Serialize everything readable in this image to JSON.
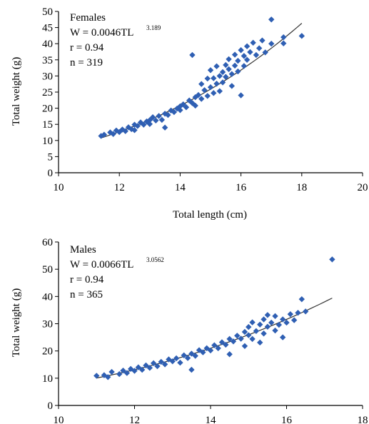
{
  "chart_data": [
    {
      "type": "scatter",
      "title": "",
      "xlabel": "Total length (cm)",
      "ylabel": "Total weight (g)",
      "xlim": [
        10,
        20
      ],
      "ylim": [
        0,
        50
      ],
      "xticks": [
        "10",
        "12",
        "14",
        "16",
        "18",
        "20"
      ],
      "yticks": [
        "0",
        "5",
        "10",
        "15",
        "20",
        "25",
        "30",
        "35",
        "40",
        "45",
        "50"
      ],
      "marker_color": "#2f5fb3",
      "fit_color": "#333333",
      "annotation": {
        "group": "Females",
        "equation_base": "W = 0.0046TL",
        "equation_exp": "3.189",
        "r": "r = 0.94",
        "n": "n = 319"
      },
      "fit": {
        "a": 0.0046,
        "b": 3.189,
        "x_range": [
          11.4,
          18.0
        ]
      },
      "series": [
        {
          "values": [
            [
              11.4,
              11.4
            ],
            [
              11.5,
              11.8
            ],
            [
              11.7,
              12.5
            ],
            [
              11.8,
              12.0
            ],
            [
              11.9,
              13.1
            ],
            [
              12.0,
              12.6
            ],
            [
              12.1,
              13.4
            ],
            [
              12.2,
              12.9
            ],
            [
              12.3,
              14.1
            ],
            [
              12.4,
              13.5
            ],
            [
              12.5,
              14.9
            ],
            [
              12.5,
              13.2
            ],
            [
              12.6,
              14.5
            ],
            [
              12.7,
              15.6
            ],
            [
              12.8,
              14.9
            ],
            [
              12.9,
              15.9
            ],
            [
              13.0,
              16.3
            ],
            [
              13.0,
              15.1
            ],
            [
              13.1,
              17.2
            ],
            [
              13.2,
              16.2
            ],
            [
              13.3,
              17.6
            ],
            [
              13.4,
              16.4
            ],
            [
              13.5,
              18.3
            ],
            [
              13.5,
              14.0
            ],
            [
              13.6,
              17.9
            ],
            [
              13.7,
              19.3
            ],
            [
              13.8,
              18.8
            ],
            [
              13.9,
              19.9
            ],
            [
              14.0,
              20.6
            ],
            [
              14.0,
              19.4
            ],
            [
              14.1,
              21.2
            ],
            [
              14.2,
              20.3
            ],
            [
              14.3,
              22.4
            ],
            [
              14.4,
              21.6
            ],
            [
              14.4,
              36.5
            ],
            [
              14.5,
              23.4
            ],
            [
              14.5,
              20.8
            ],
            [
              14.6,
              24.1
            ],
            [
              14.7,
              22.9
            ],
            [
              14.7,
              27.5
            ],
            [
              14.8,
              25.6
            ],
            [
              14.9,
              23.8
            ],
            [
              14.9,
              29.2
            ],
            [
              15.0,
              26.5
            ],
            [
              15.0,
              31.8
            ],
            [
              15.1,
              24.7
            ],
            [
              15.1,
              29.3
            ],
            [
              15.2,
              27.6
            ],
            [
              15.2,
              33.0
            ],
            [
              15.3,
              30.0
            ],
            [
              15.3,
              25.3
            ],
            [
              15.4,
              31.2
            ],
            [
              15.4,
              28.0
            ],
            [
              15.5,
              33.4
            ],
            [
              15.5,
              29.7
            ],
            [
              15.6,
              32.1
            ],
            [
              15.6,
              35.2
            ],
            [
              15.7,
              30.6
            ],
            [
              15.7,
              26.9
            ],
            [
              15.8,
              33.2
            ],
            [
              15.8,
              36.6
            ],
            [
              15.9,
              31.4
            ],
            [
              15.9,
              34.7
            ],
            [
              16.0,
              24.0
            ],
            [
              16.0,
              38.0
            ],
            [
              16.1,
              33.1
            ],
            [
              16.1,
              36.2
            ],
            [
              16.2,
              35.0
            ],
            [
              16.2,
              39.2
            ],
            [
              16.3,
              37.4
            ],
            [
              16.4,
              40.3
            ],
            [
              16.5,
              36.5
            ],
            [
              16.6,
              38.6
            ],
            [
              16.7,
              41.0
            ],
            [
              16.8,
              37.3
            ],
            [
              17.0,
              47.5
            ],
            [
              17.0,
              40.0
            ],
            [
              17.4,
              42.0
            ],
            [
              17.4,
              40.1
            ],
            [
              18.0,
              42.4
            ]
          ]
        }
      ]
    },
    {
      "type": "scatter",
      "title": "",
      "xlabel": "",
      "ylabel": "Total weight (g)",
      "xlim": [
        10,
        18
      ],
      "ylim": [
        0,
        60
      ],
      "xticks": [
        "10",
        "12",
        "14",
        "16",
        "18"
      ],
      "yticks": [
        "0",
        "10",
        "20",
        "30",
        "40",
        "50",
        "60"
      ],
      "marker_color": "#2f5fb3",
      "fit_color": "#333333",
      "annotation": {
        "group": "Males",
        "equation_base": "W = 0.0066TL",
        "equation_exp": "3.0562",
        "r": "r = 0.94",
        "n": "n = 365"
      },
      "fit": {
        "a": 0.0066,
        "b": 3.0562,
        "x_range": [
          11.0,
          17.2
        ]
      },
      "series": [
        {
          "values": [
            [
              11.0,
              10.9
            ],
            [
              11.2,
              11.1
            ],
            [
              11.3,
              10.4
            ],
            [
              11.4,
              12.3
            ],
            [
              11.6,
              11.5
            ],
            [
              11.7,
              12.8
            ],
            [
              11.8,
              11.9
            ],
            [
              11.9,
              13.4
            ],
            [
              12.0,
              12.7
            ],
            [
              12.1,
              14.0
            ],
            [
              12.2,
              13.1
            ],
            [
              12.3,
              14.7
            ],
            [
              12.4,
              13.8
            ],
            [
              12.5,
              15.5
            ],
            [
              12.6,
              14.4
            ],
            [
              12.7,
              16.0
            ],
            [
              12.8,
              15.1
            ],
            [
              12.9,
              16.9
            ],
            [
              13.0,
              16.2
            ],
            [
              13.1,
              17.3
            ],
            [
              13.2,
              15.7
            ],
            [
              13.3,
              18.4
            ],
            [
              13.4,
              17.4
            ],
            [
              13.5,
              19.0
            ],
            [
              13.5,
              13.1
            ],
            [
              13.6,
              18.2
            ],
            [
              13.7,
              20.3
            ],
            [
              13.8,
              19.5
            ],
            [
              13.9,
              21.0
            ],
            [
              14.0,
              20.2
            ],
            [
              14.1,
              22.1
            ],
            [
              14.2,
              21.0
            ],
            [
              14.3,
              23.2
            ],
            [
              14.4,
              22.3
            ],
            [
              14.5,
              24.4
            ],
            [
              14.5,
              18.8
            ],
            [
              14.6,
              23.5
            ],
            [
              14.7,
              25.6
            ],
            [
              14.8,
              24.5
            ],
            [
              14.9,
              27.0
            ],
            [
              14.9,
              21.8
            ],
            [
              15.0,
              25.8
            ],
            [
              15.0,
              28.8
            ],
            [
              15.1,
              24.4
            ],
            [
              15.1,
              30.5
            ],
            [
              15.2,
              27.3
            ],
            [
              15.3,
              29.7
            ],
            [
              15.3,
              23.1
            ],
            [
              15.4,
              31.6
            ],
            [
              15.4,
              26.4
            ],
            [
              15.5,
              28.9
            ],
            [
              15.5,
              33.2
            ],
            [
              15.6,
              30.4
            ],
            [
              15.7,
              27.5
            ],
            [
              15.7,
              32.8
            ],
            [
              15.8,
              29.6
            ],
            [
              15.9,
              31.6
            ],
            [
              15.9,
              25.0
            ],
            [
              16.0,
              30.4
            ],
            [
              16.1,
              33.5
            ],
            [
              16.2,
              31.3
            ],
            [
              16.3,
              34.0
            ],
            [
              16.4,
              39.0
            ],
            [
              16.5,
              34.5
            ],
            [
              17.2,
              53.6
            ]
          ]
        }
      ]
    }
  ]
}
